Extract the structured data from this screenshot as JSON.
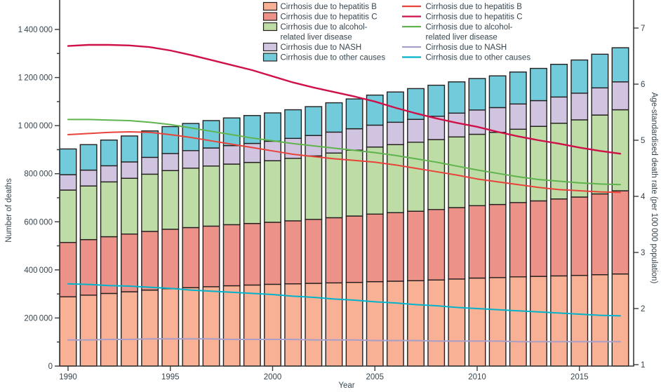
{
  "figure": {
    "background": "#ffffff",
    "text_color": "#36454f",
    "axis_color": "#3b3b3b",
    "bar_border_color": "#241f1f"
  },
  "chart_data": {
    "type": "bar",
    "subtype": "stacked-bar-with-lines",
    "x": [
      1990,
      1991,
      1992,
      1993,
      1994,
      1995,
      1996,
      1997,
      1998,
      1999,
      2000,
      2001,
      2002,
      2003,
      2004,
      2005,
      2006,
      2007,
      2008,
      2009,
      2010,
      2011,
      2012,
      2013,
      2014,
      2015,
      2016,
      2017
    ],
    "bar_series": [
      {
        "name": "Cirrhosis due to hepatitis B",
        "color": "#f9b195",
        "values": [
          288000,
          295000,
          302000,
          309000,
          316000,
          322000,
          326000,
          330000,
          334000,
          337000,
          340000,
          342000,
          344000,
          346000,
          348000,
          351000,
          353000,
          355000,
          358000,
          362000,
          366000,
          368000,
          371000,
          373000,
          375000,
          377000,
          380000,
          383000
        ]
      },
      {
        "name": "Cirrhosis due to hepatitis C",
        "color": "#ec9289",
        "values": [
          226000,
          231000,
          236000,
          240000,
          244000,
          247000,
          250000,
          252000,
          254000,
          256000,
          258000,
          262000,
          266000,
          271000,
          276000,
          281000,
          285000,
          289000,
          293000,
          297000,
          301000,
          304000,
          309000,
          314000,
          320000,
          326000,
          336000,
          346000
        ]
      },
      {
        "name": "Cirrhosis due to alcohol-related liver disease",
        "color": "#bedca5",
        "values": [
          218000,
          223000,
          228000,
          232000,
          238000,
          244000,
          247000,
          250000,
          252000,
          254000,
          256000,
          260000,
          264000,
          269000,
          274000,
          279000,
          283000,
          287000,
          291000,
          294000,
          297000,
          300000,
          305000,
          310000,
          315000,
          321000,
          328000,
          337000
        ]
      },
      {
        "name": "Cirrhosis due to NASH",
        "color": "#d0c4e0",
        "values": [
          64000,
          66000,
          67000,
          68000,
          70000,
          71000,
          73000,
          75000,
          77000,
          79000,
          81000,
          83000,
          85000,
          87000,
          89000,
          91000,
          93000,
          95000,
          97000,
          99000,
          101000,
          103000,
          105000,
          107000,
          109000,
          111000,
          113000,
          116000
        ]
      },
      {
        "name": "Cirrhosis due to other causes",
        "color": "#72cbdb",
        "values": [
          107000,
          106000,
          107000,
          108000,
          110000,
          112000,
          113000,
          114000,
          115000,
          116000,
          118000,
          119000,
          120000,
          122000,
          124000,
          125000,
          126000,
          128000,
          129000,
          130000,
          131000,
          132000,
          133000,
          134000,
          136000,
          138000,
          140000,
          142000
        ]
      }
    ],
    "line_series": [
      {
        "name": "Cirrhosis due to hepatitis B",
        "color": "#e9423a",
        "width": 2,
        "values": [
          5.1,
          5.12,
          5.14,
          5.15,
          5.14,
          5.1,
          5.05,
          4.99,
          4.93,
          4.87,
          4.81,
          4.75,
          4.71,
          4.67,
          4.64,
          4.61,
          4.56,
          4.5,
          4.44,
          4.38,
          4.31,
          4.26,
          4.21,
          4.16,
          4.12,
          4.1,
          4.08,
          4.07
        ]
      },
      {
        "name": "Cirrhosis due to hepatitis C",
        "color": "#d01048",
        "width": 2.4,
        "values": [
          6.68,
          6.7,
          6.7,
          6.69,
          6.66,
          6.6,
          6.52,
          6.43,
          6.34,
          6.25,
          6.14,
          6.03,
          5.94,
          5.86,
          5.78,
          5.69,
          5.58,
          5.48,
          5.39,
          5.31,
          5.24,
          5.15,
          5.07,
          5.0,
          4.94,
          4.87,
          4.81,
          4.76
        ]
      },
      {
        "name": "Cirrhosis due to alcohol-related liver disease",
        "color": "#5fb44e",
        "width": 2,
        "values": [
          5.37,
          5.37,
          5.36,
          5.35,
          5.32,
          5.28,
          5.22,
          5.16,
          5.1,
          5.04,
          4.99,
          4.94,
          4.9,
          4.86,
          4.82,
          4.78,
          4.73,
          4.67,
          4.61,
          4.54,
          4.47,
          4.41,
          4.35,
          4.3,
          4.27,
          4.24,
          4.22,
          4.21
        ]
      },
      {
        "name": "Cirrhosis due to NASH",
        "color": "#a89fc8",
        "width": 2,
        "values": [
          1.44,
          1.44,
          1.45,
          1.45,
          1.46,
          1.46,
          1.46,
          1.46,
          1.45,
          1.45,
          1.45,
          1.45,
          1.44,
          1.44,
          1.44,
          1.43,
          1.43,
          1.43,
          1.42,
          1.42,
          1.42,
          1.42,
          1.41,
          1.41,
          1.41,
          1.41,
          1.41,
          1.41
        ]
      },
      {
        "name": "Cirrhosis due to other causes",
        "color": "#00b3cb",
        "width": 2,
        "values": [
          2.44,
          2.43,
          2.41,
          2.4,
          2.38,
          2.36,
          2.33,
          2.31,
          2.29,
          2.27,
          2.25,
          2.22,
          2.2,
          2.17,
          2.15,
          2.12,
          2.1,
          2.07,
          2.05,
          2.02,
          2.0,
          1.98,
          1.96,
          1.94,
          1.92,
          1.9,
          1.88,
          1.87
        ]
      }
    ],
    "left_axis": {
      "label": "Number of deaths",
      "min": 0,
      "max": 1400000,
      "tick_step": 200000,
      "minor_tick_step": 100000,
      "tick_labels": [
        "0",
        "200 000",
        "400 000",
        "600 000",
        "800 000",
        "1 000 000",
        "1 200 000",
        "1 400 000"
      ]
    },
    "right_axis": {
      "label": "Age-standardised death rate (per 100 000 population)",
      "min": 1,
      "max": 7,
      "tick_step": 1,
      "tick_labels": [
        "1",
        "2",
        "3",
        "4",
        "5",
        "6",
        "7"
      ]
    },
    "x_axis": {
      "label": "Year",
      "tick_years": [
        1990,
        1995,
        2000,
        2005,
        2010,
        2015
      ]
    },
    "legend": {
      "bar_items": [
        {
          "label_lines": [
            "Cirrhosis due to hepatitis B"
          ],
          "color": "#f9b195"
        },
        {
          "label_lines": [
            "Cirrhosis due to hepatitis C"
          ],
          "color": "#ec9289"
        },
        {
          "label_lines": [
            "Cirrhosis due to alcohol-",
            "related liver disease"
          ],
          "color": "#bedca5"
        },
        {
          "label_lines": [
            "Cirrhosis due to NASH"
          ],
          "color": "#d0c4e0"
        },
        {
          "label_lines": [
            "Cirrhosis due to other causes"
          ],
          "color": "#72cbdb"
        }
      ],
      "line_items": [
        {
          "label_lines": [
            "Cirrhosis due to hepatitis B"
          ],
          "color": "#e9423a"
        },
        {
          "label_lines": [
            "Cirrhosis due to hepatitis C"
          ],
          "color": "#d01048"
        },
        {
          "label_lines": [
            "Cirrhosis due to alcohol-",
            "related liver disease"
          ],
          "color": "#5fb44e"
        },
        {
          "label_lines": [
            "Cirrhosis due to NASH"
          ],
          "color": "#a89fc8"
        },
        {
          "label_lines": [
            "Cirrhosis due to other causes"
          ],
          "color": "#00b3cb"
        }
      ]
    }
  }
}
